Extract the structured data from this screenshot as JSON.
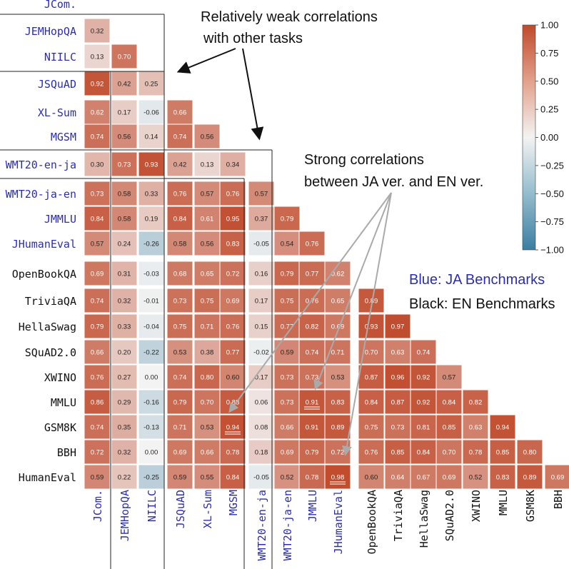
{
  "chart_data": {
    "type": "heatmap",
    "title": "",
    "labels": [
      "JCom.",
      "JEMHopQA",
      "NIILC",
      "JSQuAD",
      "XL-Sum",
      "MGSM",
      "WMT20-en-ja",
      "WMT20-ja-en",
      "JMMLU",
      "JHumanEval",
      "OpenBookQA",
      "TriviaQA",
      "HellaSwag",
      "SQuAD2.0",
      "XWINO",
      "MMLU",
      "GSM8K",
      "BBH",
      "HumanEval"
    ],
    "ja_count": 10,
    "values": [
      [],
      [
        0.32
      ],
      [
        0.13,
        0.7
      ],
      [
        0.92,
        0.42,
        0.25
      ],
      [
        0.62,
        0.17,
        -0.06,
        0.66
      ],
      [
        0.74,
        0.56,
        0.14,
        0.74,
        0.56
      ],
      [
        0.3,
        0.73,
        0.93,
        0.42,
        0.13,
        0.34
      ],
      [
        0.73,
        0.58,
        0.33,
        0.76,
        0.57,
        0.76,
        0.57
      ],
      [
        0.84,
        0.58,
        0.19,
        0.84,
        0.61,
        0.95,
        0.37,
        0.79
      ],
      [
        0.57,
        0.24,
        -0.26,
        0.58,
        0.56,
        0.83,
        -0.05,
        0.54,
        0.76
      ],
      [
        0.69,
        0.31,
        -0.03,
        0.68,
        0.65,
        0.72,
        0.16,
        0.79,
        0.77,
        0.62
      ],
      [
        0.74,
        0.32,
        -0.01,
        0.73,
        0.75,
        0.69,
        0.17,
        0.75,
        0.76,
        0.65,
        0.89
      ],
      [
        0.79,
        0.33,
        -0.04,
        0.75,
        0.71,
        0.76,
        0.15,
        0.77,
        0.82,
        0.69,
        0.93,
        0.97
      ],
      [
        0.66,
        0.2,
        -0.22,
        0.53,
        0.38,
        0.77,
        -0.02,
        0.59,
        0.74,
        0.71,
        0.7,
        0.63,
        0.74
      ],
      [
        0.76,
        0.27,
        0.0,
        0.74,
        0.8,
        0.6,
        0.17,
        0.73,
        0.73,
        0.53,
        0.87,
        0.96,
        0.92,
        0.57
      ],
      [
        0.86,
        0.29,
        -0.16,
        0.79,
        0.7,
        0.88,
        0.06,
        0.73,
        0.91,
        0.83,
        0.84,
        0.87,
        0.92,
        0.84,
        0.82
      ],
      [
        0.74,
        0.35,
        -0.13,
        0.71,
        0.53,
        0.94,
        0.08,
        0.66,
        0.91,
        0.89,
        0.75,
        0.73,
        0.81,
        0.85,
        0.63,
        0.94
      ],
      [
        0.72,
        0.32,
        0.0,
        0.69,
        0.66,
        0.78,
        0.18,
        0.69,
        0.79,
        0.72,
        0.76,
        0.85,
        0.84,
        0.7,
        0.78,
        0.85,
        0.8
      ],
      [
        0.59,
        0.22,
        -0.25,
        0.59,
        0.55,
        0.84,
        -0.05,
        0.52,
        0.78,
        0.98,
        0.6,
        0.64,
        0.67,
        0.69,
        0.52,
        0.83,
        0.89,
        0.69
      ]
    ],
    "value_labels": [
      [],
      [
        "0.32"
      ],
      [
        "0.13",
        "0.70"
      ],
      [
        "0.92",
        "0.42",
        "0.25"
      ],
      [
        "0.62",
        "0.17",
        "-0.06",
        "0.66"
      ],
      [
        "0.74",
        "0.56",
        "0.14",
        "0.74",
        "0.56"
      ],
      [
        "0.30",
        "0.73",
        "0.93",
        "0.42",
        "0.13",
        "0.34"
      ],
      [
        "0.73",
        "0.58",
        "0.33",
        "0.76",
        "0.57",
        "0.76",
        "0.57"
      ],
      [
        "0.84",
        "0.58",
        "0.19",
        "0.84",
        "0.61",
        "0.95",
        "0.37",
        "0.79"
      ],
      [
        "0.57",
        "0.24",
        "-0.26",
        "0.58",
        "0.56",
        "0.83",
        "-0.05",
        "0.54",
        "0.76"
      ],
      [
        "0.69",
        "0.31",
        "-0.03",
        "0.68",
        "0.65",
        "0.72",
        "0.16",
        "0.79",
        "0.77",
        "0.62"
      ],
      [
        "0.74",
        "0.32",
        "-0.01",
        "0.73",
        "0.75",
        "0.69",
        "0.17",
        "0.75",
        "0.76",
        "0.65",
        "0.89"
      ],
      [
        "0.79",
        "0.33",
        "-0.04",
        "0.75",
        "0.71",
        "0.76",
        "0.15",
        "0.77",
        "0.82",
        "0.69",
        "0.93",
        "0.97"
      ],
      [
        "0.66",
        "0.20",
        "-0.22",
        "0.53",
        "0.38",
        "0.77",
        "-0.02",
        "0.59",
        "0.74",
        "0.71",
        "0.70",
        "0.63",
        "0.74"
      ],
      [
        "0.76",
        "0.27",
        "0.00",
        "0.74",
        "0.80",
        "0.60",
        "0.17",
        "0.73",
        "0.73",
        "0.53",
        "0.87",
        "0.96",
        "0.92",
        "0.57"
      ],
      [
        "0.86",
        "0.29",
        "-0.16",
        "0.79",
        "0.70",
        "0.88",
        "0.06",
        "0.73",
        "0.91",
        "0.83",
        "0.84",
        "0.87",
        "0.92",
        "0.84",
        "0.82"
      ],
      [
        "0.74",
        "0.35",
        "-0.13",
        "0.71",
        "0.53",
        "0.94",
        "0.08",
        "0.66",
        "0.91",
        "0.89",
        "0.75",
        "0.73",
        "0.81",
        "0.85",
        "0.63",
        "0.94"
      ],
      [
        "0.72",
        "0.32",
        "0.00",
        "0.69",
        "0.66",
        "0.78",
        "0.18",
        "0.69",
        "0.79",
        "0.72",
        "0.76",
        "0.85",
        "0.84",
        "0.70",
        "0.78",
        "0.85",
        "0.80"
      ],
      [
        "0.59",
        "0.22",
        "-0.25",
        "0.59",
        "0.55",
        "0.84",
        "-0.05",
        "0.52",
        "0.78",
        "0.98",
        "0.60",
        "0.64",
        "0.67",
        "0.69",
        "0.52",
        "0.83",
        "0.89",
        "0.69"
      ]
    ],
    "highlighted_cells": [
      [
        15,
        8
      ],
      [
        16,
        5
      ],
      [
        18,
        9
      ]
    ],
    "colorbar": {
      "range": [
        -1.0,
        1.0
      ],
      "ticks": [
        1.0,
        0.75,
        0.5,
        0.25,
        0.0,
        -0.25,
        -0.5,
        -0.75,
        -1.0
      ],
      "tick_labels": [
        "1.00",
        "0.75",
        "0.50",
        "0.25",
        "0.00",
        "−0.25",
        "−0.50",
        "−0.75",
        "−1.00"
      ]
    },
    "colors": {
      "negative": "#3b7ea1",
      "neutral": "#f3f3f3",
      "positive": "#c0492b",
      "ja_label": "#2b2ea8",
      "en_label": "#111111"
    },
    "grid": false
  },
  "annotations": {
    "weak_line1": "Relatively weak correlations",
    "weak_line2": "with other tasks",
    "strong_line1": "Strong correlations",
    "strong_line2": "between JA ver. and EN ver."
  },
  "legend": {
    "blue": "Blue: JA Benchmarks",
    "black": "Black: EN Benchmarks"
  }
}
